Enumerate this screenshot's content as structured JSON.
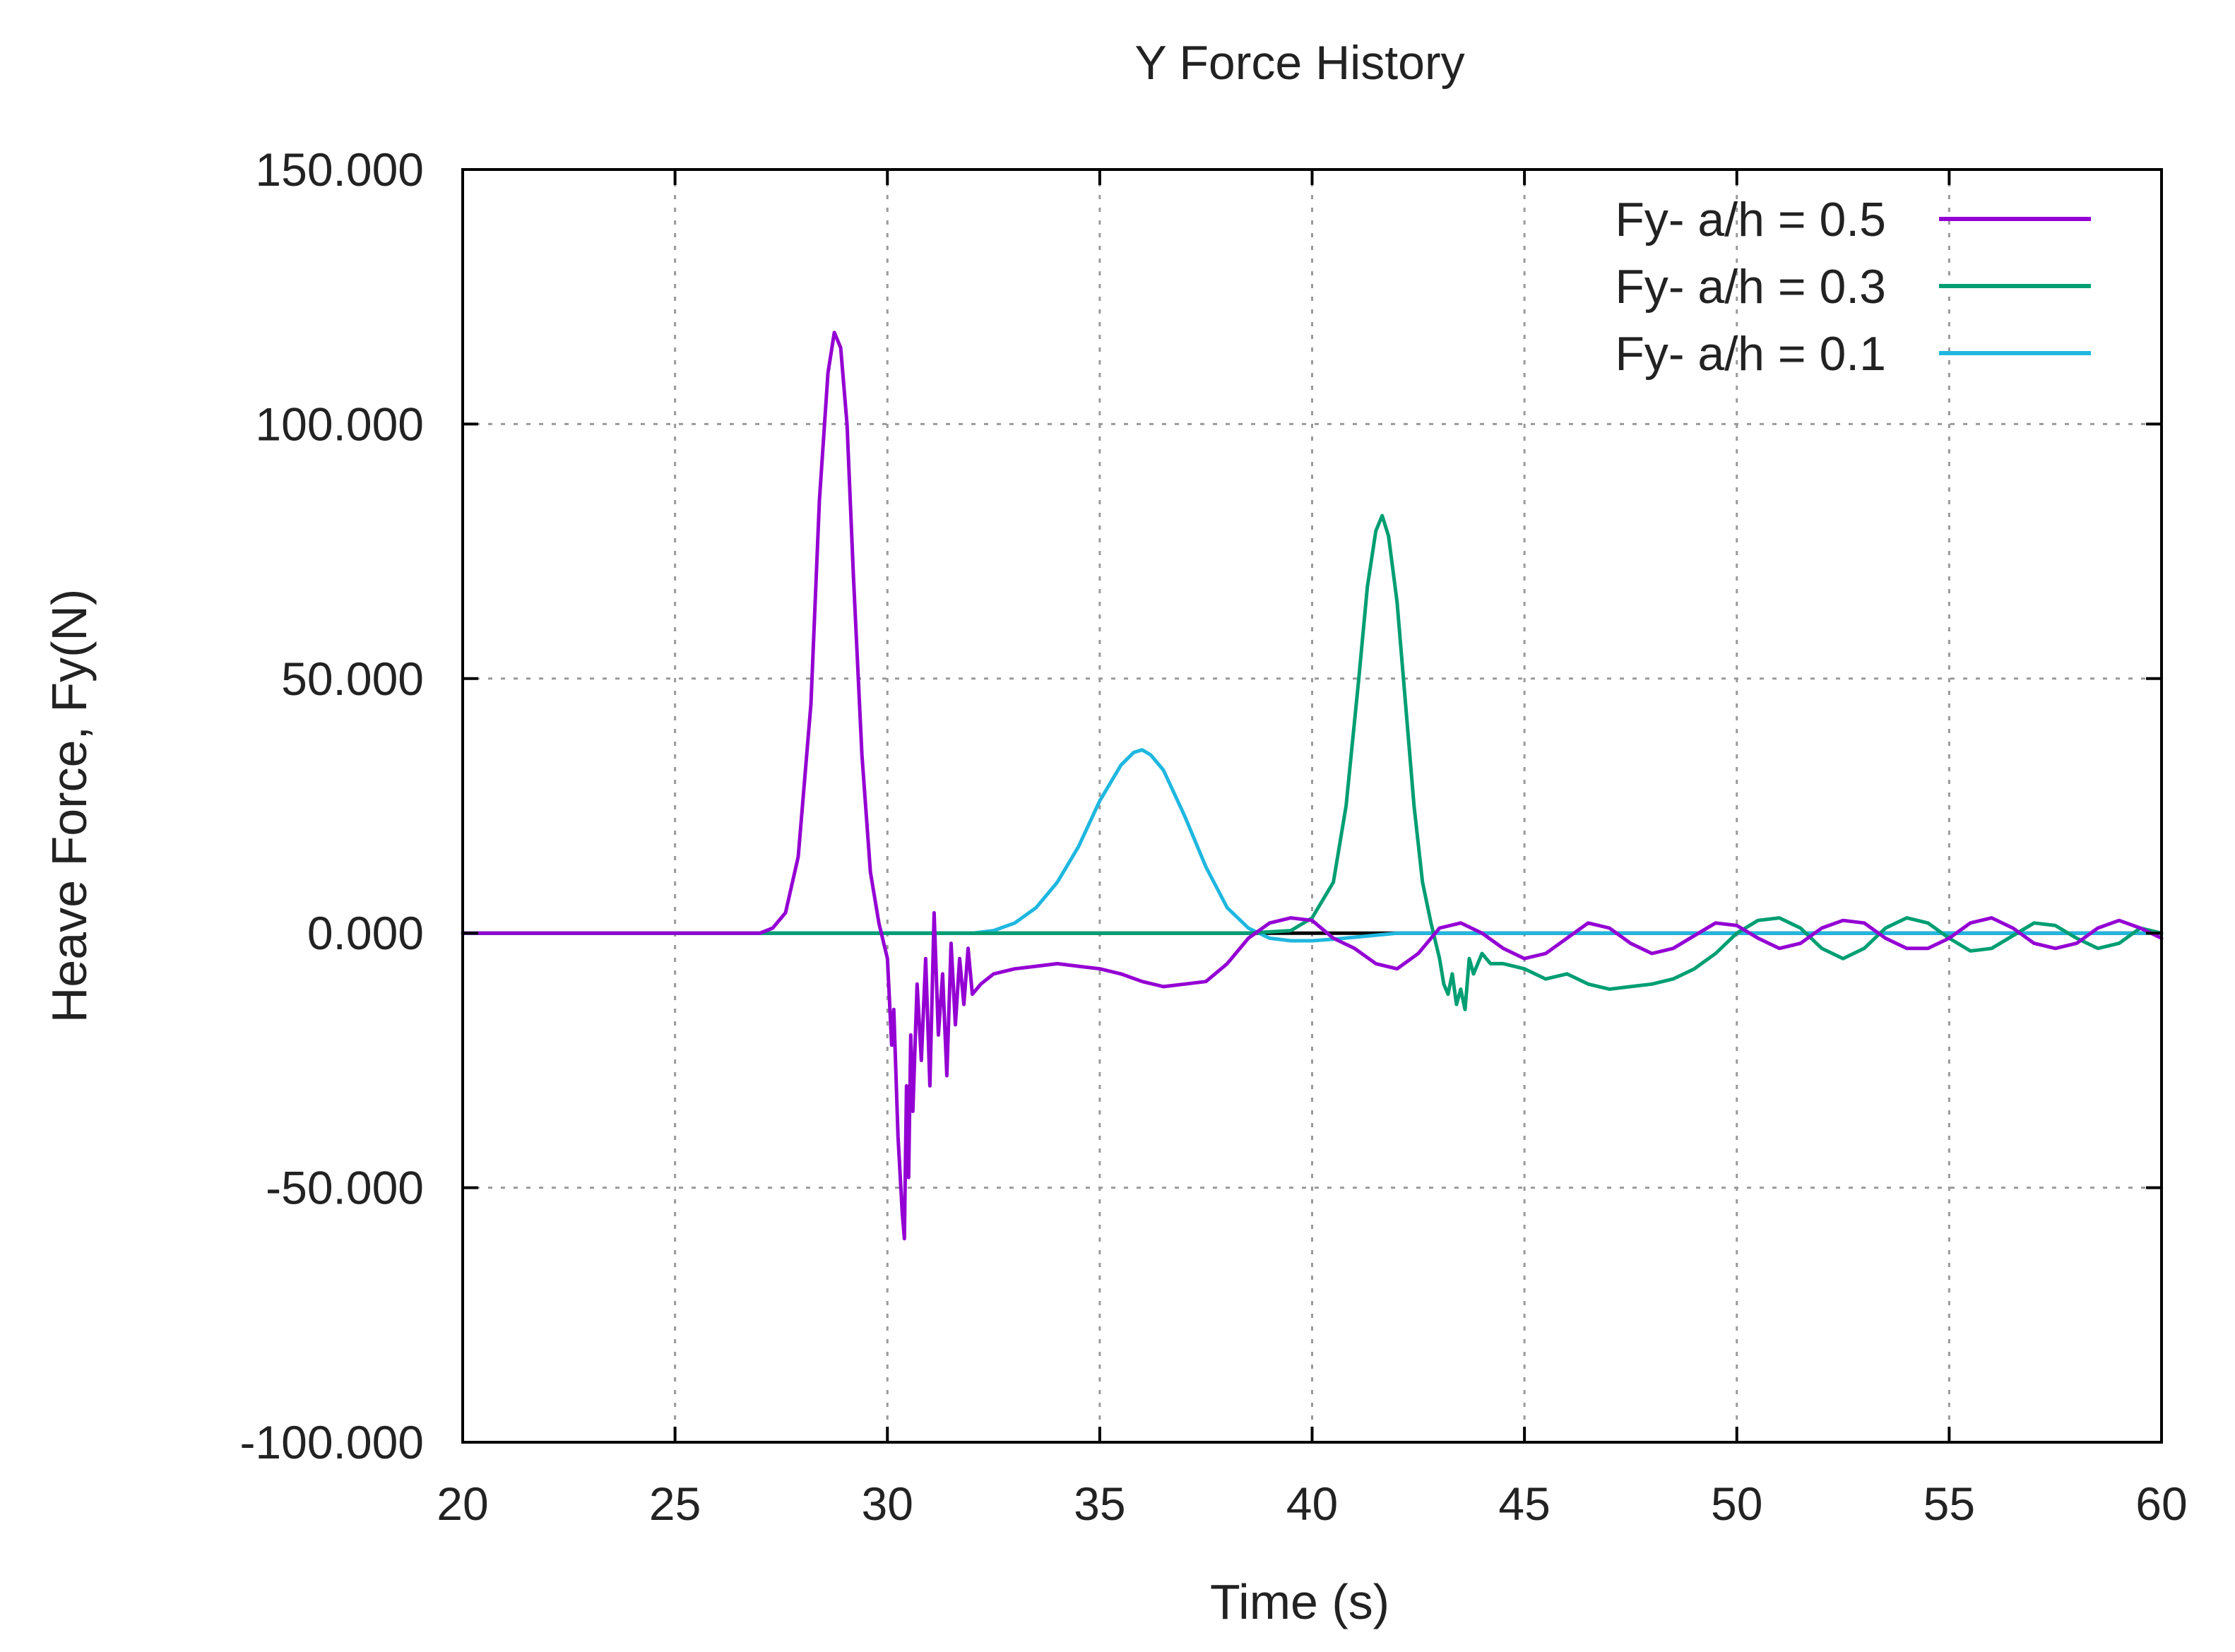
{
  "chart_data": {
    "type": "line",
    "title": "Y Force History",
    "xlabel": "Time (s)",
    "ylabel": "Heave Force, Fy(N)",
    "xlim": [
      20,
      60
    ],
    "ylim": [
      -100,
      150
    ],
    "xticks": [
      20,
      25,
      30,
      35,
      40,
      45,
      50,
      55,
      60
    ],
    "xtick_labels": [
      "20",
      "25",
      "30",
      "35",
      "40",
      "45",
      "50",
      "55",
      "60"
    ],
    "yticks": [
      -100,
      -50,
      0,
      50,
      100,
      150
    ],
    "ytick_labels": [
      "-100.000",
      "-50.000",
      "0.000",
      "50.000",
      "100.000",
      "150.000"
    ],
    "grid": true,
    "legend_position": "top-right",
    "series": [
      {
        "name": "Fy- a/h = 0.5",
        "color": "#9400d3",
        "x": [
          20,
          27,
          27.3,
          27.6,
          27.9,
          28.2,
          28.4,
          28.6,
          28.75,
          28.9,
          29.05,
          29.2,
          29.4,
          29.6,
          29.8,
          30.0,
          30.1,
          30.15,
          30.25,
          30.35,
          30.4,
          30.45,
          30.5,
          30.55,
          30.6,
          30.7,
          30.8,
          30.9,
          31.0,
          31.1,
          31.2,
          31.3,
          31.4,
          31.5,
          31.6,
          31.7,
          31.8,
          31.9,
          32.0,
          32.2,
          32.5,
          33.0,
          33.5,
          34.0,
          34.5,
          35.0,
          35.5,
          36.0,
          36.5,
          37.0,
          37.5,
          38.0,
          38.5,
          39.0,
          39.5,
          40.0,
          40.5,
          41.0,
          41.5,
          42.0,
          42.5,
          43.0,
          43.5,
          44.0,
          44.5,
          45.0,
          45.5,
          46.0,
          46.5,
          47.0,
          47.5,
          48.0,
          48.5,
          49.0,
          49.5,
          50.0,
          50.5,
          51.0,
          51.5,
          52.0,
          52.5,
          53.0,
          53.5,
          54.0,
          54.5,
          55.0,
          55.5,
          56.0,
          56.5,
          57.0,
          57.5,
          58.0,
          58.5,
          59.0,
          59.5,
          60.0
        ],
        "y": [
          0,
          0,
          1,
          4,
          15,
          45,
          85,
          110,
          118,
          115,
          100,
          70,
          35,
          12,
          2,
          -5,
          -22,
          -15,
          -40,
          -55,
          -60,
          -30,
          -48,
          -20,
          -35,
          -10,
          -25,
          -5,
          -30,
          4,
          -20,
          -8,
          -28,
          -2,
          -18,
          -5,
          -14,
          -3,
          -12,
          -10,
          -8,
          -7,
          -6.5,
          -6,
          -6.5,
          -7,
          -8,
          -9.5,
          -10.5,
          -10,
          -9.5,
          -6,
          -1,
          2,
          3,
          2.5,
          -1,
          -3,
          -6,
          -7,
          -4,
          1,
          2,
          0,
          -3,
          -5,
          -4,
          -1,
          2,
          1,
          -2,
          -4,
          -3,
          -0.5,
          2,
          1.5,
          -1,
          -3,
          -2,
          1,
          2.5,
          2,
          -1,
          -3,
          -3,
          -1,
          2,
          3,
          1,
          -2,
          -3,
          -2,
          1,
          2.5,
          1,
          -1
        ]
      },
      {
        "name": "Fy- a/h = 0.3",
        "color": "#009e73",
        "x": [
          20,
          38.5,
          39.5,
          40.0,
          40.5,
          40.8,
          41.1,
          41.3,
          41.5,
          41.65,
          41.8,
          42.0,
          42.2,
          42.4,
          42.6,
          42.8,
          43.0,
          43.1,
          43.2,
          43.3,
          43.4,
          43.5,
          43.6,
          43.7,
          43.8,
          44.0,
          44.2,
          44.5,
          45.0,
          45.5,
          46.0,
          46.5,
          47.0,
          47.5,
          48.0,
          48.5,
          49.0,
          49.5,
          50.0,
          50.5,
          51.0,
          51.5,
          52.0,
          52.5,
          53.0,
          53.5,
          54.0,
          54.5,
          55.0,
          55.5,
          56.0,
          56.5,
          57.0,
          57.5,
          58.0,
          58.5,
          59.0,
          59.5,
          60.0
        ],
        "y": [
          0,
          0,
          0.5,
          3,
          10,
          25,
          50,
          68,
          79,
          82,
          78,
          65,
          45,
          25,
          10,
          2,
          -5,
          -10,
          -12,
          -8,
          -14,
          -11,
          -15,
          -5,
          -8,
          -4,
          -6,
          -6,
          -7,
          -9,
          -8,
          -10,
          -11,
          -10.5,
          -10,
          -9,
          -7,
          -4,
          0,
          2.5,
          3,
          1,
          -3,
          -5,
          -3,
          1,
          3,
          2,
          -1,
          -3.5,
          -3,
          -0.5,
          2,
          1.5,
          -1,
          -3,
          -2,
          1,
          0
        ]
      },
      {
        "name": "Fy- a/h = 0.1",
        "color": "#1fb7e0",
        "x": [
          20,
          32.0,
          32.5,
          33.0,
          33.5,
          34.0,
          34.5,
          35.0,
          35.5,
          35.8,
          36.0,
          36.2,
          36.5,
          37.0,
          37.5,
          38.0,
          38.5,
          39.0,
          39.5,
          40.0,
          40.5,
          41.0,
          41.5,
          42.0,
          43.0,
          44.0,
          46.0,
          50.0,
          55.0,
          60.0
        ],
        "y": [
          0,
          0,
          0.5,
          2,
          5,
          10,
          17,
          26,
          33,
          35.5,
          36,
          35,
          32,
          23,
          13,
          5,
          1,
          -1,
          -1.5,
          -1.5,
          -1.2,
          -0.8,
          -0.4,
          0,
          0,
          0,
          0,
          0,
          0,
          0
        ]
      }
    ]
  }
}
